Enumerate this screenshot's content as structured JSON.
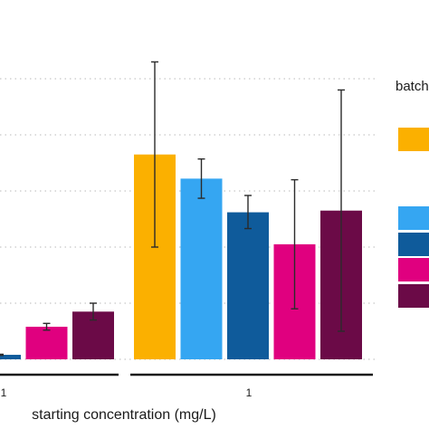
{
  "chart_data": {
    "type": "bar",
    "xlabel": "starting concentration (mg/L)",
    "ylabel": "",
    "ylim": [
      0,
      5.5
    ],
    "grid": "horizontal-dotted",
    "legend": {
      "title": "batch",
      "placement": "right",
      "colors": [
        "#FBB000",
        "#35A6F2",
        "#0F5B9B",
        "#E0007F",
        "#6B0A47"
      ]
    },
    "facets": [
      {
        "tick_label": "1",
        "series": [
          {
            "color": "#FBB000",
            "value": null,
            "err_low": null,
            "err_high": null
          },
          {
            "color": "#35A6F2",
            "value": null,
            "err_low": null,
            "err_high": null
          },
          {
            "color": "#0F5B9B",
            "value": 0.08,
            "err_low": 0.07,
            "err_high": 0.09
          },
          {
            "color": "#E0007F",
            "value": 0.58,
            "err_low": 0.52,
            "err_high": 0.64
          },
          {
            "color": "#6B0A47",
            "value": 0.85,
            "err_low": 0.7,
            "err_high": 1.0
          }
        ]
      },
      {
        "tick_label": "1",
        "series": [
          {
            "color": "#FBB000",
            "value": 3.65,
            "err_low": 2.0,
            "err_high": 5.3
          },
          {
            "color": "#35A6F2",
            "value": 3.22,
            "err_low": 2.87,
            "err_high": 3.57
          },
          {
            "color": "#0F5B9B",
            "value": 2.62,
            "err_low": 2.33,
            "err_high": 2.92
          },
          {
            "color": "#E0007F",
            "value": 2.05,
            "err_low": 0.9,
            "err_high": 3.2
          },
          {
            "color": "#6B0A47",
            "value": 2.65,
            "err_low": 0.5,
            "err_high": 4.8
          }
        ]
      }
    ]
  }
}
